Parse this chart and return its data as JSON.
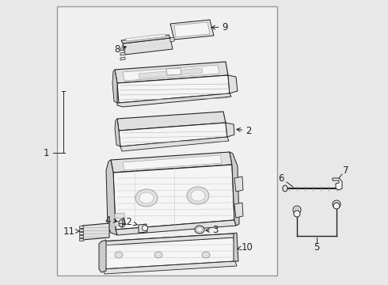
{
  "bg": "#e8e8e8",
  "box_bg": "#f0f0f0",
  "box_edge": "#aaaaaa",
  "lc": "#222222",
  "fc_light": "#f5f5f5",
  "fc_mid": "#e0e0e0",
  "fc_dark": "#cccccc",
  "label_fs": 8.5
}
